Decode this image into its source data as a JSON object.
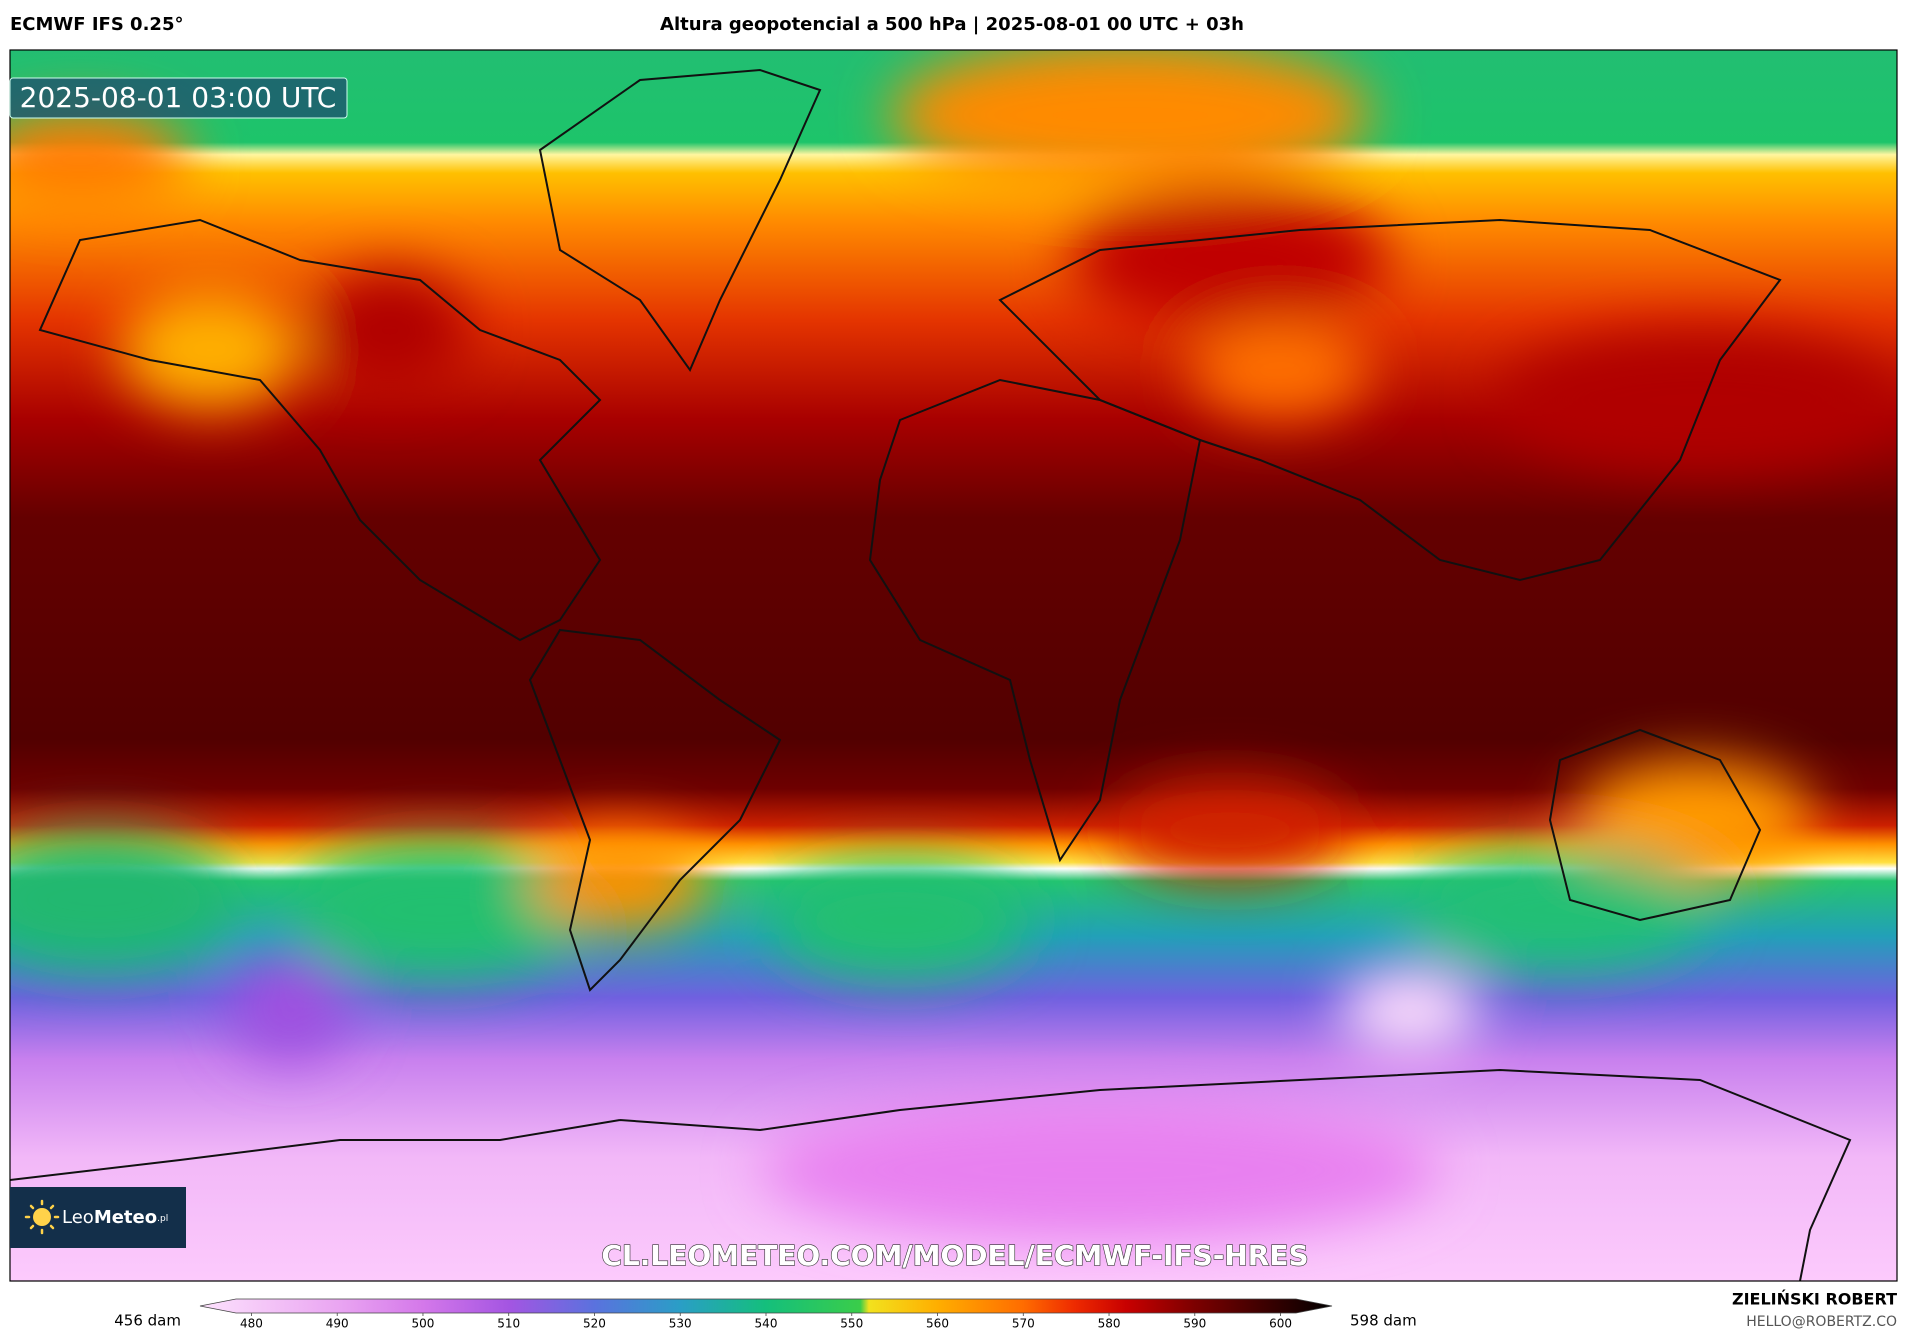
{
  "header": {
    "left": "ECMWF IFS 0.25°",
    "title": "Altura geopotencial a 500 hPa | 2025-08-01 00 UTC + 03h"
  },
  "map": {
    "timestamp": "2025-08-01 03:00 UTC",
    "watermark": "CL.LEOMETEO.COM/MODEL/ECMWF-IFS-HRES",
    "logo": {
      "part1": "Leo",
      "part2": "Meteo",
      "suffix": ".pl"
    }
  },
  "colorbar": {
    "min_label": "456 dam",
    "max_label": "598 dam",
    "lim": [
      474,
      606
    ],
    "ticks": [
      480,
      490,
      500,
      510,
      520,
      530,
      540,
      550,
      560,
      570,
      580,
      590,
      600
    ],
    "stops": [
      {
        "value": 474,
        "color": "#fde2fd"
      },
      {
        "value": 490,
        "color": "#eaa6f2"
      },
      {
        "value": 500,
        "color": "#d478ea"
      },
      {
        "value": 510,
        "color": "#a455e2"
      },
      {
        "value": 520,
        "color": "#5a72de"
      },
      {
        "value": 530,
        "color": "#2a9ec6"
      },
      {
        "value": 540,
        "color": "#14bf7c"
      },
      {
        "value": 551,
        "color": "#3acd4a"
      },
      {
        "value": 552,
        "color": "#f2e21e"
      },
      {
        "value": 560,
        "color": "#ffae00"
      },
      {
        "value": 570,
        "color": "#ff6c00"
      },
      {
        "value": 576,
        "color": "#ee2a00"
      },
      {
        "value": 582,
        "color": "#c80000"
      },
      {
        "value": 590,
        "color": "#7c0000"
      },
      {
        "value": 600,
        "color": "#2e0000"
      },
      {
        "value": 606,
        "color": "#000000"
      }
    ]
  },
  "footer": {
    "author": "ZIELIŃSKI ROBERT",
    "email": "HELLO@ROBERTZ.CO"
  }
}
